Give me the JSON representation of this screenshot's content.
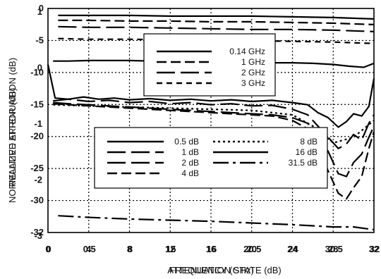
{
  "chart_data": [
    {
      "type": "line",
      "title": "",
      "xlabel": "ATTENUATION STATE (dB)",
      "ylabel": "NORMALIZED ATTENUATION (dB)",
      "xlim": [
        0,
        32
      ],
      "ylim": [
        -32,
        0
      ],
      "x_ticks": [
        "0",
        "4",
        "8",
        "12",
        "16",
        "20",
        "24",
        "28",
        "32"
      ],
      "y_ticks": [
        "0",
        "-5",
        "-10",
        "-15",
        "-20",
        "-25",
        "-30",
        "-32"
      ],
      "grid": true,
      "legend": "top-center",
      "series": [
        {
          "name": "0.14 GHz",
          "style": "solid",
          "x": [
            1,
            4,
            8,
            12,
            16,
            20,
            24,
            28,
            30,
            32
          ],
          "y": [
            -1.0,
            -1.0,
            -1.0,
            -1.1,
            -1.1,
            -1.1,
            -1.2,
            -1.3,
            -1.4,
            -1.5
          ]
        },
        {
          "name": "1 GHz",
          "style": "dash",
          "x": [
            1,
            4,
            8,
            12,
            16,
            20,
            24,
            28,
            30,
            32
          ],
          "y": [
            -1.7,
            -1.7,
            -1.8,
            -1.8,
            -1.9,
            -1.9,
            -2.0,
            -2.1,
            -2.2,
            -2.3
          ]
        },
        {
          "name": "2 GHz",
          "style": "longdash",
          "x": [
            1,
            4,
            8,
            12,
            16,
            20,
            24,
            28,
            30,
            32
          ],
          "y": [
            -2.6,
            -2.7,
            -2.7,
            -2.8,
            -2.9,
            -3.0,
            -3.0,
            -3.1,
            -3.2,
            -3.3
          ]
        },
        {
          "name": "3 GHz",
          "style": "shortdash",
          "x": [
            1,
            4,
            8,
            12,
            16,
            20,
            24,
            28,
            30,
            32
          ],
          "y": [
            -4.3,
            -4.4,
            -4.4,
            -4.5,
            -4.5,
            -4.6,
            -4.7,
            -4.8,
            -4.9,
            -5.0
          ]
        }
      ]
    },
    {
      "type": "line",
      "title": "",
      "xlabel": "FREQUENCY (GHz)",
      "ylabel": "RELATIVE ERROR (dB)",
      "xlim": [
        0,
        32
      ],
      "ylim": [
        -3,
        1
      ],
      "x_ticks": [
        "0",
        "0.5",
        "8",
        "15",
        "16",
        "20.5",
        "24",
        "30.5",
        "32"
      ],
      "y_ticks": [
        "1",
        "0",
        "-1",
        "-2",
        "-3"
      ],
      "grid": true,
      "legend": "center",
      "series": [
        {
          "name": "0.5 dB",
          "style": "solid",
          "x": [
            0,
            0.7,
            2,
            3.5,
            5,
            6.5,
            8,
            10,
            12,
            14,
            16,
            18,
            20,
            22,
            24,
            25.5,
            26.5,
            27.5,
            28.5,
            29.3,
            30,
            30.8,
            31.5,
            32
          ],
          "y": [
            0.0,
            -0.6,
            -0.62,
            -0.58,
            -0.62,
            -0.6,
            -0.63,
            -0.61,
            -0.64,
            -0.62,
            -0.65,
            -0.63,
            -0.66,
            -0.64,
            -0.68,
            -0.72,
            -0.86,
            -0.95,
            -1.12,
            -1.02,
            -0.88,
            -0.92,
            -0.75,
            -0.25
          ]
        },
        {
          "name": "1 dB",
          "style": "longdash",
          "x": [
            0.5,
            2,
            4,
            6,
            8,
            10,
            12,
            14,
            16,
            18,
            20,
            22,
            24,
            25.5,
            26.5,
            27.5,
            28.5,
            29.3,
            30,
            30.8,
            31.5,
            32
          ],
          "y": [
            -0.65,
            -0.62,
            -0.66,
            -0.64,
            -0.68,
            -0.66,
            -0.7,
            -0.68,
            -0.72,
            -0.7,
            -0.74,
            -0.73,
            -0.8,
            -0.9,
            -1.1,
            -1.3,
            -1.5,
            -1.42,
            -1.25,
            -1.35,
            -1.05,
            -0.9
          ]
        },
        {
          "name": "2 dB",
          "style": "longdash",
          "x": [
            0.5,
            2,
            4,
            6,
            8,
            10,
            12,
            14,
            16,
            18,
            20,
            22,
            24,
            25.5,
            26.5,
            27.5,
            28.5,
            29.3,
            30,
            30.8,
            31.5,
            32
          ],
          "y": [
            -0.68,
            -0.7,
            -0.72,
            -0.74,
            -0.76,
            -0.78,
            -0.8,
            -0.82,
            -0.84,
            -0.86,
            -0.88,
            -0.9,
            -0.95,
            -1.05,
            -1.3,
            -1.55,
            -1.95,
            -2.0,
            -1.75,
            -1.6,
            -1.3,
            -1.1
          ]
        },
        {
          "name": "4 dB",
          "style": "dash",
          "x": [
            0.5,
            2,
            4,
            6,
            8,
            10,
            12,
            14,
            16,
            18,
            20,
            22,
            24,
            25.5,
            26.5,
            27.5,
            28.5,
            29.3,
            30,
            30.8,
            31.5,
            32
          ],
          "y": [
            -0.7,
            -0.72,
            -0.74,
            -0.76,
            -0.78,
            -0.8,
            -0.82,
            -0.84,
            -0.86,
            -0.88,
            -0.9,
            -0.92,
            -1.0,
            -1.15,
            -1.5,
            -1.9,
            -2.3,
            -2.4,
            -2.2,
            -2.0,
            -1.5,
            -1.2
          ]
        },
        {
          "name": "8 dB",
          "style": "dot",
          "x": [
            0.5,
            4,
            8,
            12,
            16,
            20,
            24,
            26,
            28,
            30,
            32
          ],
          "y": [
            -0.72,
            -0.74,
            -0.76,
            -0.78,
            -0.8,
            -0.82,
            -0.9,
            -1.1,
            -1.4,
            -1.3,
            -1.0
          ]
        },
        {
          "name": "16 dB",
          "style": "solid",
          "x": [
            0.5,
            2,
            4,
            6,
            8,
            10,
            12,
            14,
            16,
            18,
            20,
            22,
            24,
            26,
            28,
            29.5,
            31,
            32
          ],
          "y": [
            0.06,
            0.06,
            0.07,
            0.07,
            0.07,
            0.06,
            0.06,
            0.05,
            0.05,
            0.04,
            0.04,
            0.03,
            0.03,
            0.02,
            0.0,
            -0.03,
            -0.05,
            0.02
          ]
        },
        {
          "name": "31.5 dB",
          "style": "dashdot",
          "x": [
            1,
            4,
            8,
            12,
            16,
            20,
            24,
            26,
            28,
            30,
            32
          ],
          "y": [
            -2.7,
            -2.73,
            -2.76,
            -2.78,
            -2.8,
            -2.83,
            -2.86,
            -2.88,
            -2.9,
            -2.9,
            -2.95
          ]
        }
      ]
    }
  ]
}
